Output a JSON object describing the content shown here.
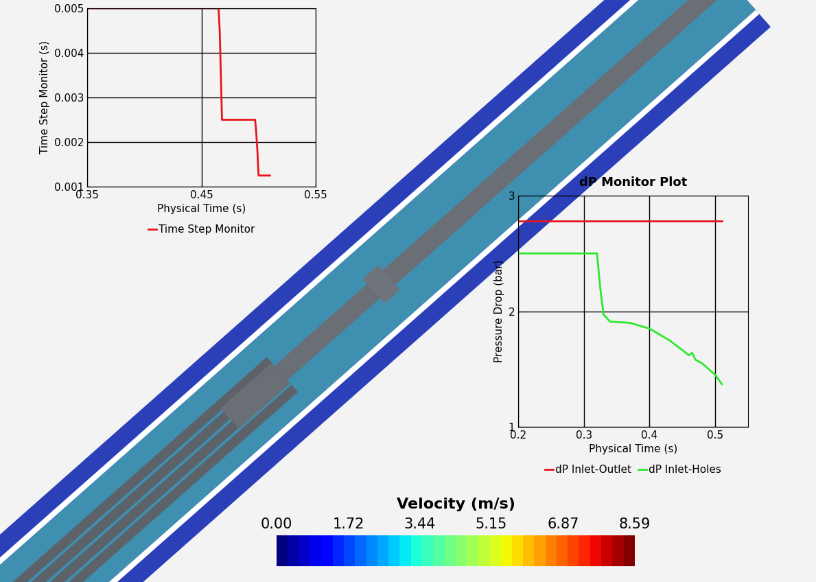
{
  "chart_data": [
    {
      "type": "line",
      "x_label": "Physical Time (s)",
      "y_label": "Time Step Monitor (s)",
      "xlim": [
        0.35,
        0.55
      ],
      "xticks": [
        0.35,
        0.45,
        0.55
      ],
      "ylim": [
        0.001,
        0.005
      ],
      "yticks": [
        0.001,
        0.002,
        0.003,
        0.004,
        0.005
      ],
      "grid": true,
      "legend": "lower center",
      "series": [
        {
          "name": "Time Step Monitor",
          "color": "#e8141c",
          "x": [
            0.35,
            0.465,
            0.466,
            0.467,
            0.468,
            0.497,
            0.498,
            0.499,
            0.5,
            0.51
          ],
          "values": [
            0.005,
            0.005,
            0.0045,
            0.0035,
            0.0025,
            0.0025,
            0.0022,
            0.0018,
            0.00125,
            0.00125
          ]
        }
      ]
    },
    {
      "type": "line",
      "title": "dP Monitor Plot",
      "x_label": "Physical Time (s)",
      "y_label": "Pressure Drop (bar)",
      "xlim": [
        0.2,
        0.55
      ],
      "xticks": [
        0.2,
        0.3,
        0.4,
        0.5
      ],
      "ylim": [
        1,
        3
      ],
      "yticks": [
        1,
        2,
        3
      ],
      "grid": true,
      "legend": "lower center",
      "series": [
        {
          "name": "dP Inlet-Outlet",
          "color": "#e8141c",
          "x": [
            0.2,
            0.3,
            0.4,
            0.51
          ],
          "values": [
            2.78,
            2.78,
            2.78,
            2.78
          ]
        },
        {
          "name": "dP Inlet-Holes",
          "color": "#2ee82e",
          "x": [
            0.2,
            0.32,
            0.325,
            0.33,
            0.34,
            0.37,
            0.4,
            0.43,
            0.46,
            0.465,
            0.47,
            0.48,
            0.5,
            0.51
          ],
          "values": [
            2.5,
            2.5,
            2.2,
            1.97,
            1.91,
            1.9,
            1.85,
            1.75,
            1.62,
            1.64,
            1.58,
            1.55,
            1.45,
            1.37
          ]
        }
      ]
    }
  ],
  "colorbar": {
    "title": "Velocity (m/s)",
    "range": [
      0,
      8.59
    ],
    "ticks": [
      {
        "value": 0,
        "label": "0.00"
      },
      1.72,
      3.44,
      5.15,
      6.87,
      8.59
    ]
  }
}
